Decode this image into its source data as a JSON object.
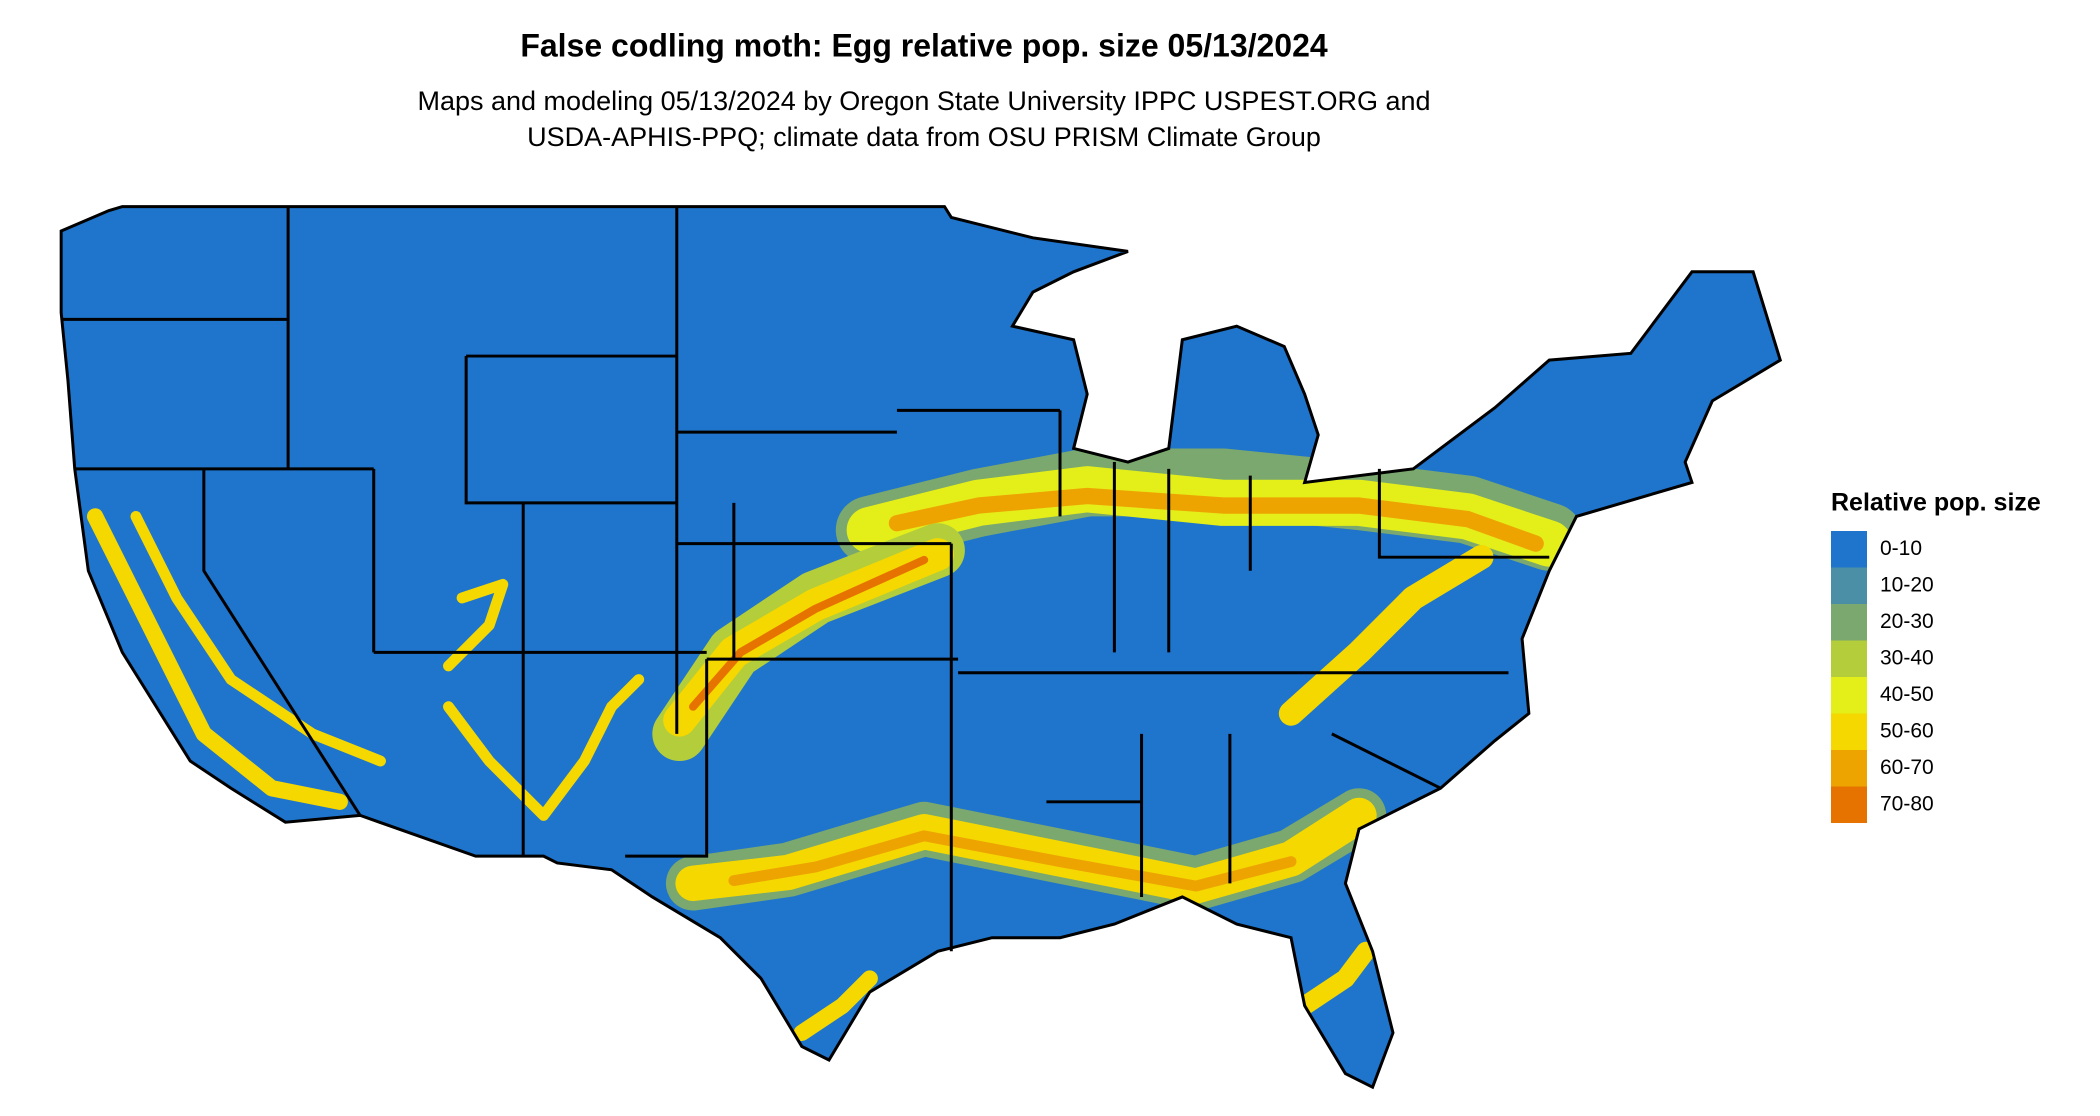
{
  "title": "False codling moth: Egg relative pop. size 05/13/2024",
  "subtitle": [
    "Maps and modeling 05/13/2024 by Oregon State University IPPC USPEST.ORG and",
    "USDA-APHIS-PPQ; climate data from OSU PRISM Climate Group"
  ],
  "legend": {
    "title": "Relative pop. size",
    "items": [
      {
        "label": "0-10",
        "color": "#1f74cc"
      },
      {
        "label": "10-20",
        "color": "#4a8fa5"
      },
      {
        "label": "20-30",
        "color": "#7aa86e"
      },
      {
        "label": "30-40",
        "color": "#b4cd3a"
      },
      {
        "label": "40-50",
        "color": "#e4ee19"
      },
      {
        "label": "50-60",
        "color": "#f5d800"
      },
      {
        "label": "60-70",
        "color": "#eea400"
      },
      {
        "label": "70-80",
        "color": "#e67300"
      }
    ]
  }
}
